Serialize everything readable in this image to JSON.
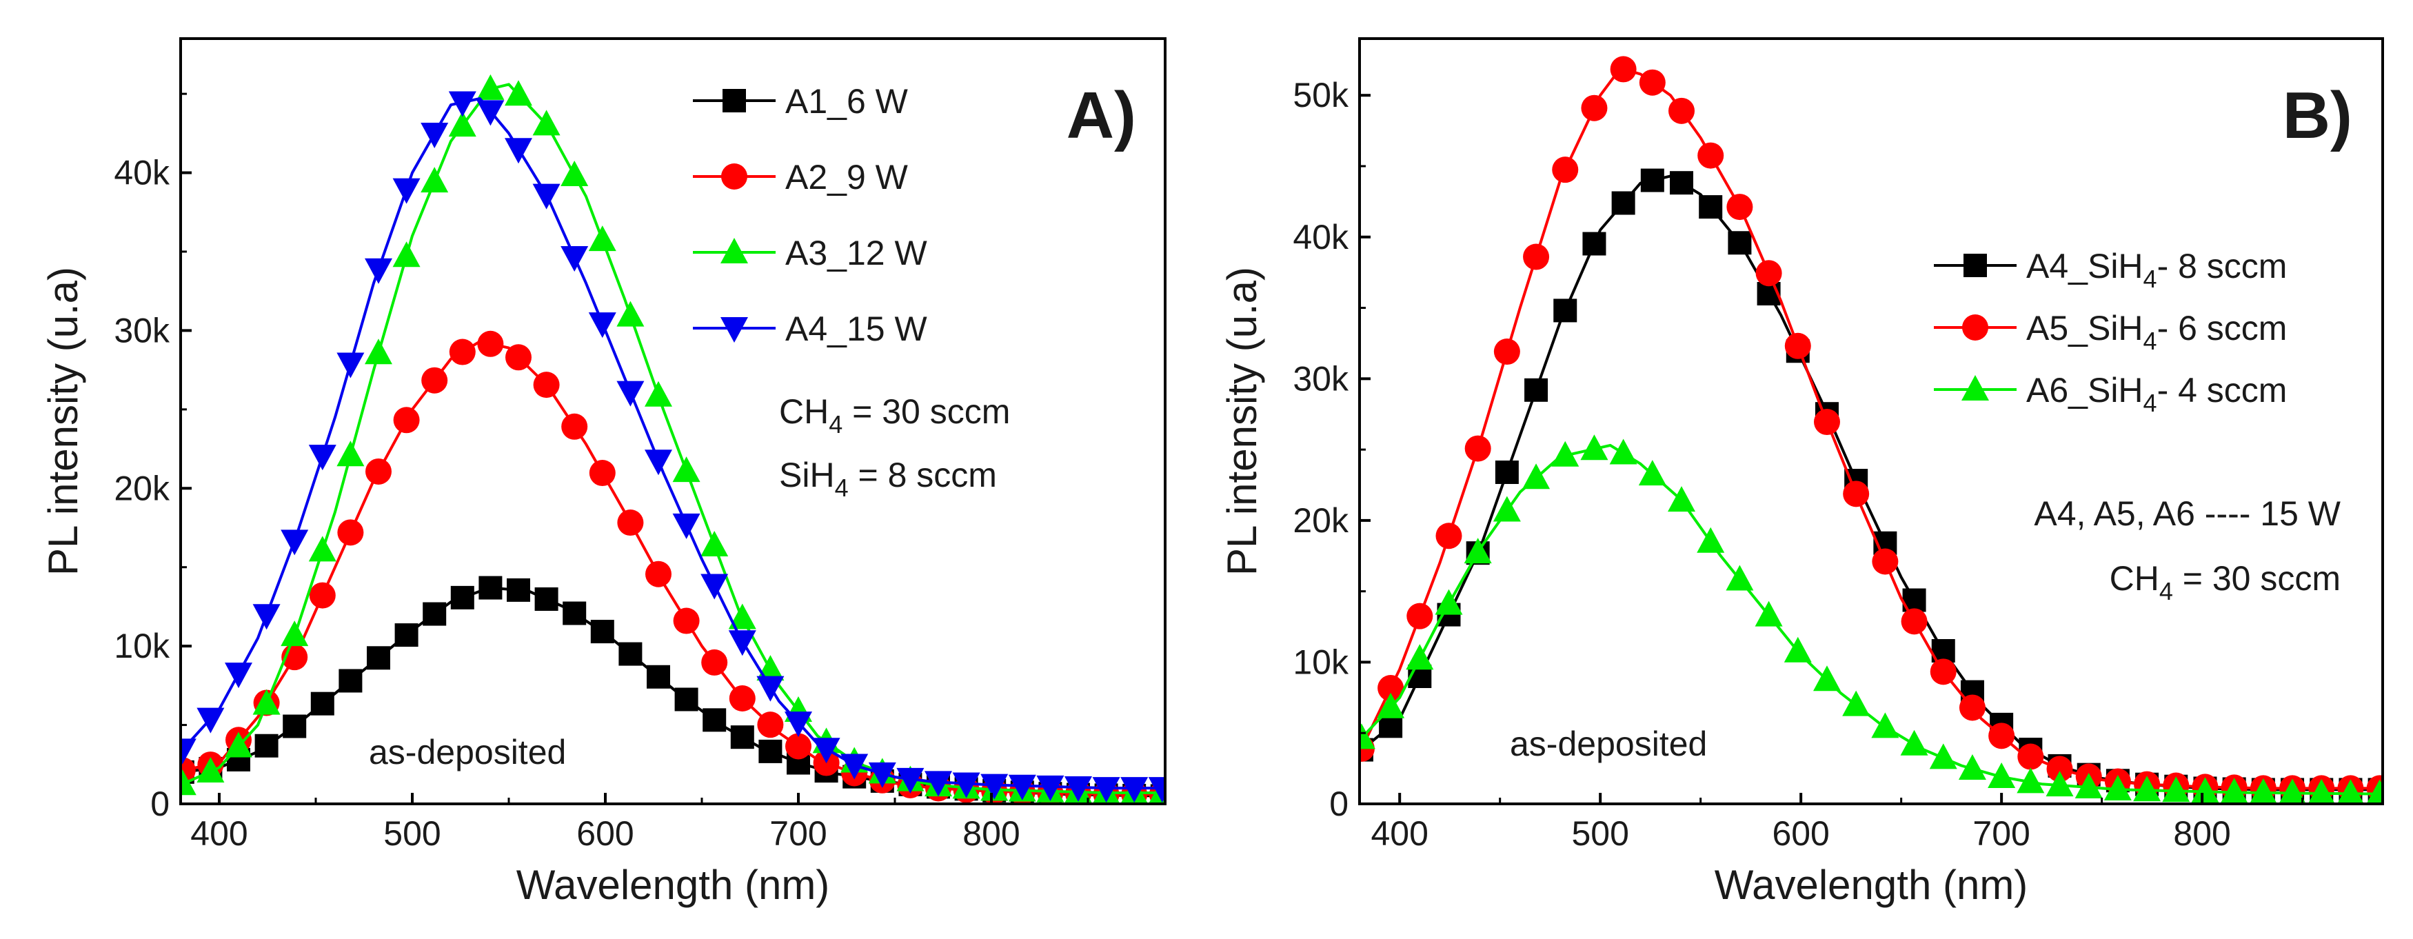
{
  "chart_data": [
    {
      "type": "line",
      "panel_label": "A)",
      "xlabel": "Wavelength (nm)",
      "ylabel": "PL intensity (u.a)",
      "xlim": [
        380,
        890
      ],
      "ylim": [
        0,
        48500
      ],
      "x_ticks": [
        400,
        500,
        600,
        700,
        800
      ],
      "x_tick_labels": [
        "400",
        "500",
        "600",
        "700",
        "800"
      ],
      "y_ticks": [
        0,
        10000,
        20000,
        30000,
        40000
      ],
      "y_tick_labels": [
        "0",
        "10k",
        "20k",
        "30k",
        "40k"
      ],
      "legend_position": "top-right",
      "annotations": [
        {
          "text": "CH",
          "sub": "4",
          "tail": " = 30 sccm"
        },
        {
          "text": "SiH",
          "sub": "4",
          "tail": " = 8 sccm"
        },
        {
          "text": "as-deposited"
        }
      ],
      "series": [
        {
          "name": "A1_6 W",
          "legend": {
            "pre": "A1_6 W"
          },
          "color": "#000000",
          "marker": "square",
          "points": [
            [
              380,
              2000
            ],
            [
              400,
              2300
            ],
            [
              420,
              3300
            ],
            [
              440,
              5000
            ],
            [
              460,
              7000
            ],
            [
              480,
              9000
            ],
            [
              500,
              11000
            ],
            [
              520,
              12800
            ],
            [
              540,
              13700
            ],
            [
              560,
              13500
            ],
            [
              580,
              12400
            ],
            [
              600,
              10800
            ],
            [
              620,
              8800
            ],
            [
              640,
              6800
            ],
            [
              660,
              5000
            ],
            [
              680,
              3600
            ],
            [
              700,
              2600
            ],
            [
              720,
              1900
            ],
            [
              740,
              1500
            ],
            [
              760,
              1200
            ],
            [
              780,
              1000
            ],
            [
              800,
              850
            ],
            [
              820,
              700
            ],
            [
              840,
              600
            ],
            [
              860,
              550
            ],
            [
              890,
              500
            ]
          ]
        },
        {
          "name": "A2_9 W",
          "legend": {
            "pre": "A2_9 W"
          },
          "color": "#ff0000",
          "marker": "circle",
          "points": [
            [
              380,
              2100
            ],
            [
              400,
              2600
            ],
            [
              420,
              5500
            ],
            [
              440,
              9500
            ],
            [
              460,
              15000
            ],
            [
              480,
              20500
            ],
            [
              500,
              25000
            ],
            [
              520,
              28200
            ],
            [
              535,
              29300
            ],
            [
              550,
              28900
            ],
            [
              570,
              26500
            ],
            [
              590,
              22800
            ],
            [
              610,
              18500
            ],
            [
              630,
              14000
            ],
            [
              650,
              10000
            ],
            [
              670,
              6800
            ],
            [
              690,
              4500
            ],
            [
              710,
              2800
            ],
            [
              730,
              1900
            ],
            [
              750,
              1300
            ],
            [
              770,
              1000
            ],
            [
              800,
              800
            ],
            [
              830,
              700
            ],
            [
              860,
              600
            ],
            [
              890,
              600
            ]
          ]
        },
        {
          "name": "A3_12 W",
          "legend": {
            "pre": "A3_12 W"
          },
          "color": "#00ee00",
          "marker": "triangle-up",
          "points": [
            [
              380,
              1200
            ],
            [
              400,
              2300
            ],
            [
              420,
              5000
            ],
            [
              440,
              11000
            ],
            [
              460,
              18500
            ],
            [
              480,
              27500
            ],
            [
              500,
              36000
            ],
            [
              520,
              42000
            ],
            [
              540,
              45300
            ],
            [
              550,
              45600
            ],
            [
              570,
              43000
            ],
            [
              590,
              38500
            ],
            [
              610,
              32000
            ],
            [
              630,
              25000
            ],
            [
              650,
              18500
            ],
            [
              670,
              12000
            ],
            [
              690,
              7500
            ],
            [
              710,
              4300
            ],
            [
              730,
              2600
            ],
            [
              750,
              1700
            ],
            [
              770,
              1200
            ],
            [
              800,
              900
            ],
            [
              830,
              800
            ],
            [
              860,
              700
            ],
            [
              890,
              700
            ]
          ]
        },
        {
          "name": "A4_15 W",
          "legend": {
            "pre": "A4_15 W"
          },
          "color": "#0000ee",
          "marker": "triangle-down",
          "points": [
            [
              380,
              3300
            ],
            [
              400,
              6000
            ],
            [
              420,
              10500
            ],
            [
              440,
              17000
            ],
            [
              460,
              24500
            ],
            [
              480,
              33000
            ],
            [
              500,
              40000
            ],
            [
              520,
              44300
            ],
            [
              535,
              44700
            ],
            [
              550,
              42500
            ],
            [
              570,
              38500
            ],
            [
              590,
              33000
            ],
            [
              610,
              27000
            ],
            [
              630,
              21000
            ],
            [
              650,
              15500
            ],
            [
              670,
              10500
            ],
            [
              690,
              6500
            ],
            [
              710,
              3800
            ],
            [
              730,
              2400
            ],
            [
              750,
              1700
            ],
            [
              770,
              1400
            ],
            [
              800,
              1200
            ],
            [
              830,
              1100
            ],
            [
              860,
              1000
            ],
            [
              890,
              1000
            ]
          ]
        }
      ]
    },
    {
      "type": "line",
      "panel_label": "B)",
      "xlabel": "Wavelength (nm)",
      "ylabel": "PL intensity (u.a)",
      "xlim": [
        380,
        890
      ],
      "ylim": [
        0,
        54000
      ],
      "x_ticks": [
        400,
        500,
        600,
        700,
        800
      ],
      "x_tick_labels": [
        "400",
        "500",
        "600",
        "700",
        "800"
      ],
      "y_ticks": [
        0,
        10000,
        20000,
        30000,
        40000,
        50000
      ],
      "y_tick_labels": [
        "0",
        "10k",
        "20k",
        "30k",
        "40k",
        "50k"
      ],
      "legend_position": "top-right",
      "annotations": [
        {
          "text": "A4, A5, A6 ---- 15 W"
        },
        {
          "text": "CH",
          "sub": "4",
          "tail": " = 30 sccm"
        },
        {
          "text": "as-deposited"
        }
      ],
      "series": [
        {
          "name": "A4_SiH4- 8 sccm",
          "legend": {
            "pre": "A4_SiH",
            "sub": "4",
            "post": "- 8 sccm"
          },
          "color": "#000000",
          "marker": "square",
          "points": [
            [
              380,
              3700
            ],
            [
              400,
              6000
            ],
            [
              420,
              12000
            ],
            [
              440,
              18000
            ],
            [
              460,
              26000
            ],
            [
              480,
              34000
            ],
            [
              500,
              40500
            ],
            [
              520,
              43800
            ],
            [
              535,
              44300
            ],
            [
              550,
              43000
            ],
            [
              570,
              39500
            ],
            [
              590,
              34500
            ],
            [
              610,
              28500
            ],
            [
              630,
              22000
            ],
            [
              650,
              16000
            ],
            [
              670,
              11000
            ],
            [
              690,
              7000
            ],
            [
              710,
              4200
            ],
            [
              730,
              2600
            ],
            [
              750,
              1800
            ],
            [
              770,
              1400
            ],
            [
              800,
              1100
            ],
            [
              830,
              1000
            ],
            [
              860,
              1000
            ],
            [
              890,
              1000
            ]
          ]
        },
        {
          "name": "A5_SiH4- 6 sccm",
          "legend": {
            "pre": "A5_SiH",
            "sub": "4",
            "post": "- 6 sccm"
          },
          "color": "#ff0000",
          "marker": "circle",
          "points": [
            [
              380,
              3600
            ],
            [
              400,
              9500
            ],
            [
              420,
              17000
            ],
            [
              440,
              25500
            ],
            [
              460,
              35000
            ],
            [
              480,
              44000
            ],
            [
              500,
              50000
            ],
            [
              510,
              51900
            ],
            [
              520,
              51500
            ],
            [
              535,
              50000
            ],
            [
              550,
              47000
            ],
            [
              570,
              42000
            ],
            [
              590,
              35500
            ],
            [
              610,
              28000
            ],
            [
              630,
              21000
            ],
            [
              650,
              14500
            ],
            [
              670,
              9500
            ],
            [
              690,
              6000
            ],
            [
              710,
              3600
            ],
            [
              730,
              2400
            ],
            [
              750,
              1700
            ],
            [
              770,
              1400
            ],
            [
              800,
              1200
            ],
            [
              830,
              1100
            ],
            [
              860,
              1100
            ],
            [
              890,
              1100
            ]
          ]
        },
        {
          "name": "A6_SiH4- 4 sccm",
          "legend": {
            "pre": "A6_SiH",
            "sub": "4",
            "post": "- 4 sccm"
          },
          "color": "#00ee00",
          "marker": "triangle-up",
          "points": [
            [
              380,
              4500
            ],
            [
              400,
              7500
            ],
            [
              420,
              13000
            ],
            [
              440,
              18000
            ],
            [
              460,
              22000
            ],
            [
              480,
              24500
            ],
            [
              505,
              25300
            ],
            [
              520,
              24000
            ],
            [
              540,
              21500
            ],
            [
              560,
              17500
            ],
            [
              580,
              14000
            ],
            [
              600,
              10500
            ],
            [
              620,
              7800
            ],
            [
              640,
              5600
            ],
            [
              660,
              3900
            ],
            [
              680,
              2700
            ],
            [
              700,
              1900
            ],
            [
              720,
              1400
            ],
            [
              740,
              1200
            ],
            [
              760,
              1000
            ],
            [
              790,
              900
            ],
            [
              820,
              800
            ],
            [
              850,
              750
            ],
            [
              890,
              700
            ]
          ]
        }
      ]
    }
  ]
}
